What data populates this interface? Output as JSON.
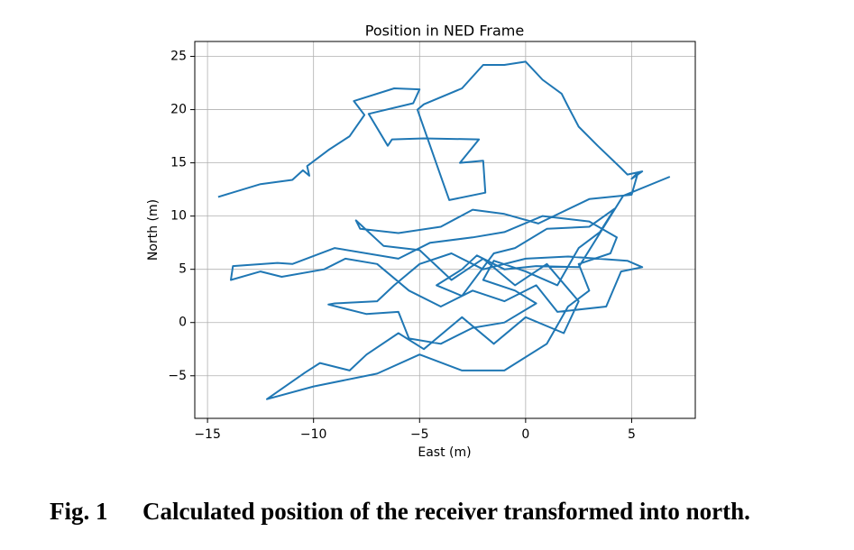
{
  "chart_data": {
    "type": "line",
    "title": "Position in NED Frame",
    "xlabel": "East (m)",
    "ylabel": "North (m)",
    "caption_label": "Fig. 1",
    "caption": "Calculated position of the receiver transformed into north.",
    "grid": true,
    "xlim": [
      -15.6,
      8.0
    ],
    "ylim": [
      -9.0,
      26.4
    ],
    "xticks": [
      {
        "value": -15,
        "label": "−15"
      },
      {
        "value": -10,
        "label": "−10"
      },
      {
        "value": -5,
        "label": "−5"
      },
      0,
      5
    ],
    "yticks": [
      {
        "value": -5,
        "label": "−5"
      },
      0,
      5,
      10,
      15,
      20,
      25
    ],
    "series": [
      {
        "color": "#1f77b4",
        "x": [
          -14.5,
          -12.5,
          -11.0,
          -10.5,
          -10.2,
          -10.3,
          -9.3,
          -8.3,
          -7.6,
          -8.1,
          -6.2,
          -5.0,
          -5.3,
          -7.4,
          -6.5,
          -6.3,
          -4.8,
          -2.2,
          -3.1,
          -2.0,
          -1.9,
          -3.6,
          -3.9,
          -5.1,
          -4.8,
          -3.0,
          -2.0,
          -1.0,
          0.0,
          0.8,
          1.7,
          2.0,
          2.5,
          3.4,
          4.5,
          4.8,
          5.5,
          5.0,
          5.3,
          5.0,
          3.0,
          0.6,
          -1.0,
          -2.5,
          -4.0,
          -6.0,
          -7.8,
          -8.0,
          -6.7,
          -5.0,
          -3.5,
          -2.0,
          -0.5,
          1.0,
          2.5,
          1.8,
          0.0,
          -1.5,
          -3.0,
          -4.8,
          -6.0,
          -7.5,
          -8.3,
          -9.7,
          -10.4,
          -12.2,
          -10.0,
          -7.0,
          -5.0,
          -3.0,
          -1.0,
          1.0,
          2.0,
          3.0,
          2.5,
          4.0,
          4.3,
          3.0,
          0.8,
          -1.0,
          -2.5,
          -4.5,
          -6.0,
          -9.0,
          -11.0,
          -11.7,
          -13.8,
          -13.9,
          -12.5,
          -11.5,
          -9.5,
          -8.5,
          -7.0,
          -5.5,
          -4.0,
          -2.5,
          -1.0,
          0.5,
          1.5,
          3.8,
          4.5,
          5.5,
          4.8,
          2.0,
          0.0,
          -2.0,
          -3.5,
          -5.0,
          -6.2,
          -7.0,
          -9.0,
          -9.3,
          -7.5,
          -6.0,
          -5.5,
          -4.0,
          -2.5,
          -1.0,
          0.5,
          -0.5,
          -2.0,
          -1.5,
          0.0,
          1.5,
          2.5,
          3.5,
          4.2,
          3.0,
          1.0,
          -0.5,
          -1.5,
          -3.0,
          -4.2,
          -3.0,
          -2.3,
          -1.0,
          0.5,
          2.5,
          4.6,
          6.8
        ],
        "y": [
          11.8,
          13.0,
          13.4,
          14.3,
          13.8,
          14.7,
          16.2,
          17.5,
          19.5,
          20.8,
          22.0,
          21.9,
          20.6,
          19.6,
          16.6,
          17.2,
          17.3,
          17.2,
          15.0,
          15.2,
          12.2,
          11.5,
          13.2,
          20.0,
          20.5,
          22.0,
          24.2,
          24.2,
          24.5,
          22.8,
          21.5,
          20.3,
          18.4,
          16.6,
          14.5,
          13.9,
          14.2,
          13.5,
          14.1,
          12.0,
          11.6,
          9.3,
          10.2,
          10.6,
          9.0,
          8.4,
          8.8,
          9.6,
          7.2,
          6.8,
          4.0,
          6.0,
          3.5,
          5.5,
          2.0,
          -1.0,
          0.5,
          -2.0,
          0.5,
          -2.5,
          -1.0,
          -3.0,
          -4.5,
          -3.8,
          -4.7,
          -7.2,
          -6.0,
          -4.8,
          -3.0,
          -4.5,
          -4.5,
          -2.0,
          1.5,
          3.0,
          5.5,
          6.5,
          8.0,
          9.5,
          10.0,
          8.5,
          8.0,
          7.5,
          6.0,
          7.0,
          5.5,
          5.6,
          5.3,
          4.0,
          4.8,
          4.3,
          5.0,
          6.0,
          5.5,
          3.0,
          1.5,
          3.0,
          2.0,
          3.5,
          1.0,
          1.5,
          4.8,
          5.2,
          5.8,
          6.2,
          6.0,
          5.0,
          6.5,
          5.5,
          3.5,
          2.0,
          1.8,
          1.7,
          0.8,
          1.0,
          -1.5,
          -2.0,
          -0.5,
          0.0,
          1.8,
          3.0,
          4.0,
          5.8,
          4.8,
          3.5,
          7.0,
          8.5,
          10.7,
          9.0,
          8.8,
          7.0,
          6.5,
          2.5,
          3.5,
          5.0,
          6.3,
          5.0,
          5.3,
          5.2,
          11.9,
          13.7
        ]
      }
    ]
  }
}
